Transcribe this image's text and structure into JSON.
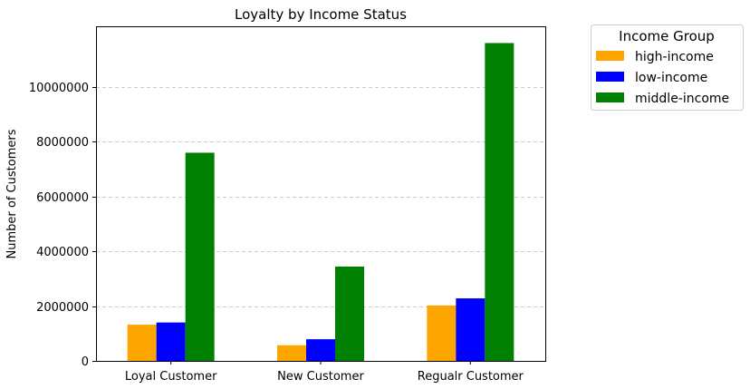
{
  "chart_data": {
    "type": "bar",
    "title": "Loyalty by Income Status",
    "xlabel": "",
    "ylabel": "Number of Customers",
    "categories": [
      "Loyal Customer",
      "New Customer",
      "Regualr Customer"
    ],
    "series": [
      {
        "name": "high-income",
        "color": "#FFA500",
        "values": [
          1320000,
          570000,
          2020000
        ]
      },
      {
        "name": "low-income",
        "color": "#0000FF",
        "values": [
          1400000,
          790000,
          2280000
        ]
      },
      {
        "name": "middle-income",
        "color": "#008000",
        "values": [
          7590000,
          3440000,
          11590000
        ]
      }
    ],
    "ylim": [
      0,
      12200000
    ],
    "yticks": [
      0,
      2000000,
      4000000,
      6000000,
      8000000,
      10000000
    ],
    "ytick_labels": [
      "0",
      "2000000",
      "4000000",
      "6000000",
      "8000000",
      "10000000"
    ],
    "grid": "y-dashed",
    "legend": {
      "title": "Income Group",
      "placement": "outside-top-right"
    }
  }
}
